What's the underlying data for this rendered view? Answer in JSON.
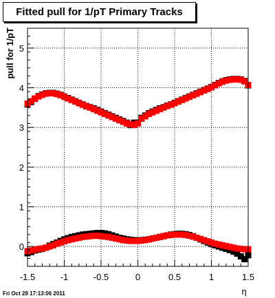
{
  "chart_data": {
    "type": "scatter",
    "title": "Fitted pull for 1/pT  Primary Tracks",
    "xlabel": "η",
    "ylabel": "pull for 1/pT",
    "xlim": [
      -1.5,
      1.5
    ],
    "ylim": [
      -0.5,
      5.5
    ],
    "xticks": [
      "-1.5",
      "-1",
      "-0.5",
      "0",
      "0.5",
      "1",
      "1.5"
    ],
    "xtick_values": [
      -1.5,
      -1,
      -0.5,
      0,
      0.5,
      1,
      1.5
    ],
    "yticks": [
      "0",
      "1",
      "2",
      "3",
      "4",
      "5"
    ],
    "ytick_values": [
      0,
      1,
      2,
      3,
      4,
      5
    ],
    "grid": true,
    "series": [
      {
        "color": "#000000",
        "marker": "square",
        "curve": "upper",
        "x": [
          -1.5,
          -1.45,
          -1.4,
          -1.35,
          -1.3,
          -1.25,
          -1.2,
          -1.15,
          -1.1,
          -1.05,
          -1.0,
          -0.95,
          -0.9,
          -0.85,
          -0.8,
          -0.75,
          -0.7,
          -0.65,
          -0.6,
          -0.55,
          -0.5,
          -0.45,
          -0.4,
          -0.35,
          -0.3,
          -0.25,
          -0.2,
          -0.15,
          -0.1,
          -0.05,
          0.0,
          0.05,
          0.1,
          0.15,
          0.2,
          0.25,
          0.3,
          0.35,
          0.4,
          0.45,
          0.5,
          0.55,
          0.6,
          0.65,
          0.7,
          0.75,
          0.8,
          0.85,
          0.9,
          0.95,
          1.0,
          1.05,
          1.1,
          1.15,
          1.2,
          1.25,
          1.3,
          1.35,
          1.4,
          1.45,
          1.5
        ],
        "y": [
          3.58,
          3.64,
          3.72,
          3.79,
          3.83,
          3.86,
          3.87,
          3.87,
          3.85,
          3.82,
          3.78,
          3.74,
          3.7,
          3.66,
          3.62,
          3.58,
          3.54,
          3.51,
          3.48,
          3.44,
          3.4,
          3.36,
          3.32,
          3.28,
          3.24,
          3.2,
          3.16,
          3.12,
          3.06,
          3.12,
          3.12,
          3.24,
          3.3,
          3.36,
          3.4,
          3.44,
          3.48,
          3.51,
          3.55,
          3.58,
          3.62,
          3.66,
          3.7,
          3.74,
          3.78,
          3.82,
          3.86,
          3.9,
          3.94,
          3.98,
          4.02,
          4.07,
          4.12,
          4.16,
          4.19,
          4.21,
          4.22,
          4.22,
          4.21,
          4.17,
          4.06
        ]
      },
      {
        "color": "#ff0000",
        "marker": "square",
        "curve": "upper",
        "x": [
          -1.5,
          -1.45,
          -1.4,
          -1.35,
          -1.3,
          -1.25,
          -1.2,
          -1.15,
          -1.1,
          -1.05,
          -1.0,
          -0.95,
          -0.9,
          -0.85,
          -0.8,
          -0.75,
          -0.7,
          -0.65,
          -0.6,
          -0.55,
          -0.5,
          -0.45,
          -0.4,
          -0.35,
          -0.3,
          -0.25,
          -0.2,
          -0.15,
          -0.1,
          -0.05,
          0.0,
          0.05,
          0.1,
          0.15,
          0.2,
          0.25,
          0.3,
          0.35,
          0.4,
          0.45,
          0.5,
          0.55,
          0.6,
          0.65,
          0.7,
          0.75,
          0.8,
          0.85,
          0.9,
          0.95,
          1.0,
          1.05,
          1.1,
          1.15,
          1.2,
          1.25,
          1.3,
          1.35,
          1.4,
          1.45,
          1.5
        ],
        "y": [
          3.6,
          3.66,
          3.73,
          3.78,
          3.82,
          3.85,
          3.86,
          3.86,
          3.84,
          3.81,
          3.77,
          3.73,
          3.69,
          3.65,
          3.61,
          3.57,
          3.53,
          3.5,
          3.46,
          3.42,
          3.38,
          3.34,
          3.3,
          3.26,
          3.22,
          3.18,
          3.14,
          3.1,
          3.08,
          3.06,
          3.1,
          3.22,
          3.28,
          3.34,
          3.38,
          3.42,
          3.46,
          3.5,
          3.54,
          3.57,
          3.61,
          3.65,
          3.69,
          3.73,
          3.77,
          3.81,
          3.85,
          3.89,
          3.93,
          3.97,
          4.01,
          4.06,
          4.11,
          4.15,
          4.18,
          4.2,
          4.21,
          4.21,
          4.2,
          4.16,
          4.07
        ]
      },
      {
        "color": "#000000",
        "marker": "square",
        "curve": "lower",
        "x": [
          -1.5,
          -1.45,
          -1.4,
          -1.35,
          -1.3,
          -1.25,
          -1.2,
          -1.15,
          -1.1,
          -1.05,
          -1.0,
          -0.95,
          -0.9,
          -0.85,
          -0.8,
          -0.75,
          -0.7,
          -0.65,
          -0.6,
          -0.55,
          -0.5,
          -0.45,
          -0.4,
          -0.35,
          -0.3,
          -0.25,
          -0.2,
          -0.15,
          -0.1,
          -0.05,
          0.0,
          0.05,
          0.1,
          0.15,
          0.2,
          0.25,
          0.3,
          0.35,
          0.4,
          0.45,
          0.5,
          0.55,
          0.6,
          0.65,
          0.7,
          0.75,
          0.8,
          0.85,
          0.9,
          0.95,
          1.0,
          1.05,
          1.1,
          1.15,
          1.2,
          1.25,
          1.3,
          1.35,
          1.4,
          1.45,
          1.5
        ],
        "y": [
          -0.17,
          -0.14,
          -0.1,
          -0.08,
          -0.06,
          -0.03,
          0.02,
          0.06,
          0.1,
          0.14,
          0.18,
          0.21,
          0.24,
          0.26,
          0.28,
          0.3,
          0.31,
          0.32,
          0.33,
          0.34,
          0.34,
          0.33,
          0.31,
          0.28,
          0.25,
          0.22,
          0.2,
          0.18,
          0.17,
          0.16,
          0.15,
          0.16,
          0.17,
          0.18,
          0.2,
          0.22,
          0.24,
          0.26,
          0.28,
          0.3,
          0.31,
          0.32,
          0.32,
          0.31,
          0.29,
          0.26,
          0.22,
          0.18,
          0.14,
          0.1,
          0.06,
          0.03,
          0.0,
          -0.03,
          -0.06,
          -0.09,
          -0.13,
          -0.18,
          -0.25,
          -0.32,
          -0.22
        ]
      },
      {
        "color": "#ff0000",
        "marker": "square",
        "curve": "lower",
        "x": [
          -1.5,
          -1.45,
          -1.4,
          -1.35,
          -1.3,
          -1.25,
          -1.2,
          -1.15,
          -1.1,
          -1.05,
          -1.0,
          -0.95,
          -0.9,
          -0.85,
          -0.8,
          -0.75,
          -0.7,
          -0.65,
          -0.6,
          -0.55,
          -0.5,
          -0.45,
          -0.4,
          -0.35,
          -0.3,
          -0.25,
          -0.2,
          -0.15,
          -0.1,
          -0.05,
          0.0,
          0.05,
          0.1,
          0.15,
          0.2,
          0.25,
          0.3,
          0.35,
          0.4,
          0.45,
          0.5,
          0.55,
          0.6,
          0.65,
          0.7,
          0.75,
          0.8,
          0.85,
          0.9,
          0.95,
          1.0,
          1.05,
          1.1,
          1.15,
          1.2,
          1.25,
          1.3,
          1.35,
          1.4,
          1.45,
          1.5
        ],
        "y": [
          -0.12,
          -0.1,
          -0.08,
          -0.06,
          -0.05,
          -0.03,
          0.0,
          0.03,
          0.07,
          0.1,
          0.13,
          0.16,
          0.18,
          0.2,
          0.22,
          0.24,
          0.25,
          0.26,
          0.27,
          0.27,
          0.26,
          0.25,
          0.24,
          0.22,
          0.2,
          0.18,
          0.16,
          0.15,
          0.14,
          0.14,
          0.14,
          0.15,
          0.16,
          0.18,
          0.2,
          0.22,
          0.24,
          0.26,
          0.28,
          0.29,
          0.3,
          0.3,
          0.3,
          0.29,
          0.27,
          0.25,
          0.22,
          0.19,
          0.16,
          0.13,
          0.1,
          0.07,
          0.05,
          0.03,
          0.01,
          -0.01,
          -0.03,
          -0.05,
          -0.06,
          -0.07,
          -0.07
        ]
      }
    ]
  },
  "footer": {
    "timestamp": "Fri Oct 28 17:13:06 2011"
  },
  "style": {
    "frame_color": "#000000",
    "grid_color": "#000000",
    "background": "#ffffff"
  }
}
